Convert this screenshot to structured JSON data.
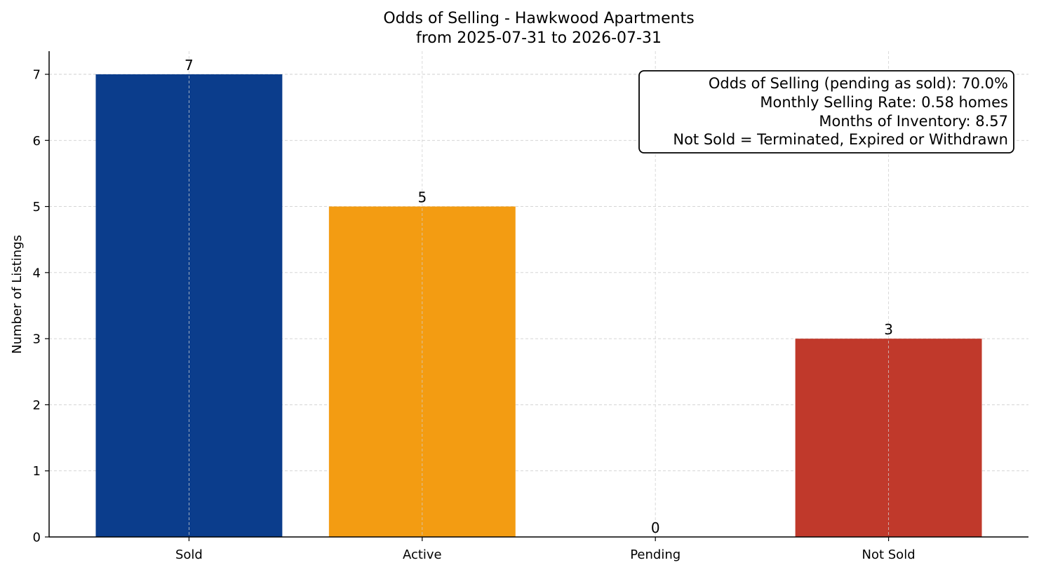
{
  "chart_data": {
    "type": "bar",
    "title": "Odds of Selling - Hawkwood Apartments",
    "subtitle": "from 2025-07-31 to 2026-07-31",
    "xlabel": "",
    "ylabel": "Number of Listings",
    "categories": [
      "Sold",
      "Active",
      "Pending",
      "Not Sold"
    ],
    "values": [
      7,
      5,
      0,
      3
    ],
    "data_labels": [
      "7",
      "5",
      "0",
      "3"
    ],
    "colors": [
      "#0b3d8c",
      "#f39c12",
      "#7f7f7f",
      "#c0392b"
    ],
    "ylim": [
      0,
      7.35
    ],
    "yticks": [
      0,
      1,
      2,
      3,
      4,
      5,
      6,
      7
    ],
    "ytick_labels": [
      "0",
      "1",
      "2",
      "3",
      "4",
      "5",
      "6",
      "7"
    ],
    "grid": true,
    "legend": "none",
    "annotation_placement": "top-right",
    "annotation": [
      "Odds of Selling (pending as sold): 70.0%",
      "Monthly Selling Rate: 0.58 homes",
      "Months of Inventory: 8.57",
      "Not Sold = Terminated, Expired or Withdrawn"
    ]
  }
}
